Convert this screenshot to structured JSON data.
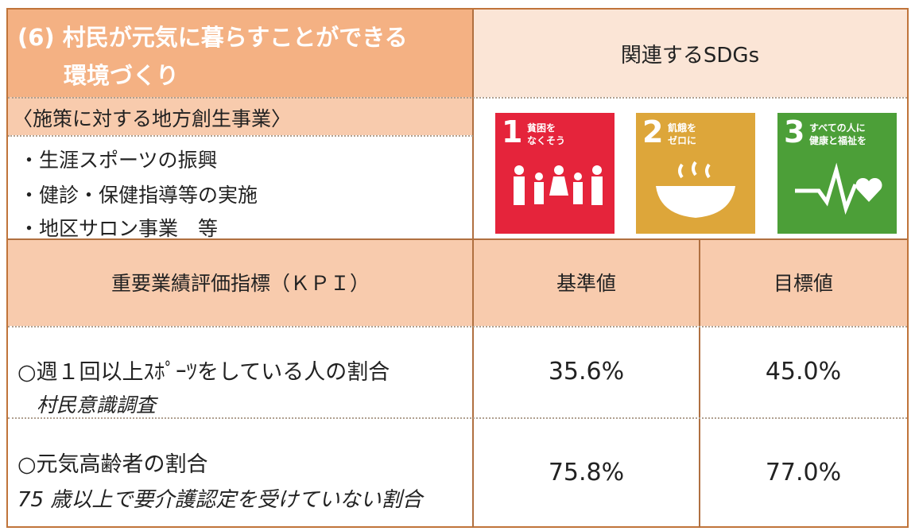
{
  "header": {
    "title_lines": [
      "(6) 村民が元気に暮らすことができる",
      "環境づくり"
    ],
    "sdgs_label": "関連するSDGs"
  },
  "measures": {
    "heading": "〈施策に対する地方創生事業〉",
    "items": [
      "・生涯スポーツの振興",
      "・健診・保健指導等の実施",
      "・地区サロン事業　等"
    ]
  },
  "sdgs": [
    {
      "number": "1",
      "label_lines": [
        "貧困を",
        "なくそう"
      ],
      "color": "#e5243b"
    },
    {
      "number": "2",
      "label_lines": [
        "飢餓を",
        "ゼロに"
      ],
      "color": "#dda63a"
    },
    {
      "number": "3",
      "label_lines": [
        "すべての人に",
        "健康と福祉を"
      ],
      "color": "#4c9f38"
    }
  ],
  "kpi": {
    "headers": [
      "重要業績評価指標（ＫＰＩ）",
      "基準値",
      "目標値"
    ],
    "rows": [
      {
        "indicator": "○週１回以上ｽﾎﾟｰﾂをしている人の割合",
        "source": "村民意識調査",
        "baseline": "35.6%",
        "target": "45.0%"
      },
      {
        "indicator": "○元気高齢者の割合",
        "source": "75 歳以上で要介護認定を受けていない割合",
        "baseline": "75.8%",
        "target": "77.0%"
      }
    ]
  }
}
